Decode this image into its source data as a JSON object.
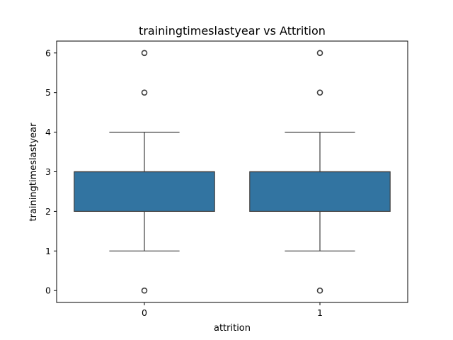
{
  "chart_data": {
    "type": "box",
    "title": "trainingtimeslastyear vs Attrition",
    "xlabel": "attrition",
    "ylabel": "trainingtimeslastyear",
    "categories": [
      "0",
      "1"
    ],
    "ylim": [
      -0.3,
      6.3
    ],
    "yticks": [
      0,
      1,
      2,
      3,
      4,
      5,
      6
    ],
    "grid": false,
    "box_color": "#3274a1",
    "line_color": "#3f3f3f",
    "boxes": [
      {
        "category": "0",
        "whisker_low": 1,
        "q1": 2,
        "median": 3,
        "q3": 3,
        "whisker_high": 4,
        "outliers": [
          0,
          5,
          6
        ]
      },
      {
        "category": "1",
        "whisker_low": 1,
        "q1": 2,
        "median": 3,
        "q3": 3,
        "whisker_high": 4,
        "outliers": [
          0,
          5,
          6
        ]
      }
    ]
  }
}
